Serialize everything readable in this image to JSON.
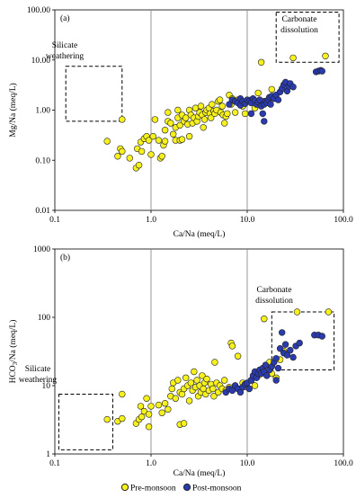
{
  "colors": {
    "pre": "#f6f11c",
    "post": "#2a3bb0",
    "outline": "#222222",
    "refline": "#8c8c8c"
  },
  "legend": {
    "pre": "Pre-monsoon",
    "post": "Post-monsoon"
  },
  "chart_data": [
    {
      "type": "scatter",
      "panel": "(a)",
      "xlabel": "Ca/Na (meq/L)",
      "ylabel": "Mg/Na (meq/L)",
      "xscale": "log",
      "yscale": "log",
      "xlim": [
        0.1,
        100
      ],
      "ylim": [
        0.01,
        100
      ],
      "xticks": [
        "0.1",
        "1.0",
        "10.0",
        "100.0"
      ],
      "yticks": [
        "0.01",
        "0.10",
        "1.00",
        "10.00",
        "100.00"
      ],
      "reference_lines_x": [
        1,
        10
      ],
      "annotations": [
        {
          "text": [
            "Silicate",
            "weathering"
          ],
          "box": {
            "x": [
              0.13,
              0.5
            ],
            "y": [
              0.6,
              7.5
            ]
          }
        },
        {
          "text": [
            "Carbonate",
            "dissolution"
          ],
          "box": {
            "x": [
              20,
              90
            ],
            "y": [
              9,
              90
            ]
          }
        }
      ],
      "series": [
        {
          "name": "Pre-monsoon",
          "points": [
            [
              0.35,
              0.24
            ],
            [
              0.45,
              0.12
            ],
            [
              0.48,
              0.17
            ],
            [
              0.5,
              0.15
            ],
            [
              0.5,
              0.65
            ],
            [
              0.6,
              0.11
            ],
            [
              0.7,
              0.07
            ],
            [
              0.72,
              0.17
            ],
            [
              0.75,
              0.08
            ],
            [
              0.78,
              0.23
            ],
            [
              0.8,
              0.15
            ],
            [
              0.85,
              0.27
            ],
            [
              0.9,
              0.3
            ],
            [
              0.95,
              0.25
            ],
            [
              1.0,
              0.13
            ],
            [
              1.05,
              0.3
            ],
            [
              1.1,
              0.65
            ],
            [
              1.2,
              0.25
            ],
            [
              1.25,
              0.11
            ],
            [
              1.3,
              0.12
            ],
            [
              1.35,
              0.2
            ],
            [
              1.4,
              0.24
            ],
            [
              1.4,
              0.4
            ],
            [
              1.5,
              0.6
            ],
            [
              1.5,
              0.9
            ],
            [
              1.6,
              0.55
            ],
            [
              1.7,
              0.33
            ],
            [
              1.8,
              0.25
            ],
            [
              1.8,
              0.45
            ],
            [
              1.9,
              0.7
            ],
            [
              1.9,
              1.0
            ],
            [
              2.0,
              0.25
            ],
            [
              2.0,
              0.5
            ],
            [
              2.1,
              0.26
            ],
            [
              2.1,
              0.8
            ],
            [
              2.2,
              0.6
            ],
            [
              2.3,
              0.7
            ],
            [
              2.4,
              0.52
            ],
            [
              2.5,
              1.0
            ],
            [
              2.5,
              0.3
            ],
            [
              2.6,
              0.8
            ],
            [
              2.7,
              0.55
            ],
            [
              2.8,
              0.7
            ],
            [
              2.9,
              1.1
            ],
            [
              3.0,
              0.6
            ],
            [
              3.1,
              0.75
            ],
            [
              3.2,
              0.9
            ],
            [
              3.3,
              1.2
            ],
            [
              3.4,
              0.8
            ],
            [
              3.5,
              0.45
            ],
            [
              3.6,
              0.65
            ],
            [
              3.7,
              0.9
            ],
            [
              3.8,
              1.0
            ],
            [
              4.0,
              1.1
            ],
            [
              4.1,
              0.85
            ],
            [
              4.2,
              0.7
            ],
            [
              4.3,
              1.3
            ],
            [
              4.5,
              0.95
            ],
            [
              4.6,
              0.85
            ],
            [
              4.8,
              1.0
            ],
            [
              5.0,
              1.5
            ],
            [
              5.2,
              1.6
            ],
            [
              5.3,
              0.9
            ],
            [
              5.5,
              1.2
            ],
            [
              5.6,
              0.8
            ],
            [
              5.8,
              0.55
            ],
            [
              6.0,
              0.75
            ],
            [
              6.2,
              0.85
            ],
            [
              6.5,
              2.0
            ],
            [
              6.8,
              1.3
            ],
            [
              7.0,
              1.7
            ],
            [
              7.5,
              0.9
            ],
            [
              8.0,
              1.6
            ],
            [
              8.5,
              1.3
            ],
            [
              9.0,
              1.2
            ],
            [
              9.5,
              0.85
            ],
            [
              10.0,
              1.5
            ],
            [
              11.0,
              1.6
            ],
            [
              12.0,
              1.1
            ],
            [
              13.0,
              2.2
            ],
            [
              14.0,
              9.0
            ],
            [
              15.0,
              1.5
            ],
            [
              18.0,
              2.6
            ],
            [
              30.0,
              11.0
            ],
            [
              65.0,
              12.0
            ]
          ]
        },
        {
          "name": "Post-monsoon",
          "points": [
            [
              6.5,
              1.3
            ],
            [
              7.0,
              1.6
            ],
            [
              7.5,
              1.5
            ],
            [
              8.0,
              1.4
            ],
            [
              8.5,
              1.25
            ],
            [
              8.5,
              1.7
            ],
            [
              9.0,
              1.5
            ],
            [
              9.5,
              1.35
            ],
            [
              10.0,
              1.6
            ],
            [
              10.5,
              1.5
            ],
            [
              11.0,
              1.4
            ],
            [
              11.0,
              0.85
            ],
            [
              11.5,
              1.7
            ],
            [
              12.0,
              1.55
            ],
            [
              12.5,
              1.3
            ],
            [
              13.0,
              1.45
            ],
            [
              13.5,
              1.6
            ],
            [
              14.0,
              1.2
            ],
            [
              14.5,
              0.85
            ],
            [
              15.0,
              1.3
            ],
            [
              15.0,
              0.6
            ],
            [
              15.5,
              1.5
            ],
            [
              16.0,
              1.4
            ],
            [
              16.5,
              1.6
            ],
            [
              17.0,
              1.8
            ],
            [
              17.5,
              1.3
            ],
            [
              18.0,
              1.9
            ],
            [
              19.0,
              1.7
            ],
            [
              20.0,
              2.0
            ],
            [
              21.0,
              1.6
            ],
            [
              22.0,
              2.3
            ],
            [
              23.0,
              2.7
            ],
            [
              24.0,
              3.2
            ],
            [
              25.0,
              3.6
            ],
            [
              26.0,
              2.4
            ],
            [
              27.0,
              3.0
            ],
            [
              28.0,
              3.4
            ],
            [
              30.0,
              2.9
            ],
            [
              52.0,
              5.8
            ],
            [
              55.0,
              6.0
            ],
            [
              58.0,
              6.2
            ],
            [
              60.0,
              6.0
            ]
          ]
        }
      ]
    },
    {
      "type": "scatter",
      "panel": "(b)",
      "xlabel": "Ca/Na (meq/L)",
      "ylabel": "HCO3/Na (meq/L)",
      "xscale": "log",
      "yscale": "log",
      "xlim": [
        0.1,
        100
      ],
      "ylim": [
        1,
        1000
      ],
      "xticks": [
        "0.1",
        "1.0",
        "10.0",
        "100.0"
      ],
      "yticks": [
        "1",
        "10",
        "100",
        "1000"
      ],
      "reference_lines_x": [
        1,
        10
      ],
      "annotations": [
        {
          "text": [
            "Silicate",
            "weathering"
          ],
          "box": {
            "x": [
              0.11,
              0.4
            ],
            "y": [
              1.15,
              7.5
            ]
          }
        },
        {
          "text": [
            "Carbonate",
            "dissolution"
          ],
          "box": {
            "x": [
              18,
              80
            ],
            "y": [
              17,
              120
            ]
          }
        }
      ],
      "series": [
        {
          "name": "Pre-monsoon",
          "points": [
            [
              0.35,
              3.2
            ],
            [
              0.45,
              3.0
            ],
            [
              0.5,
              7.5
            ],
            [
              0.5,
              3.3
            ],
            [
              0.7,
              2.8
            ],
            [
              0.75,
              3.2
            ],
            [
              0.78,
              5.0
            ],
            [
              0.8,
              3.5
            ],
            [
              0.85,
              4.2
            ],
            [
              0.9,
              6.5
            ],
            [
              0.95,
              2.5
            ],
            [
              0.95,
              3.8
            ],
            [
              1.0,
              5.0
            ],
            [
              1.2,
              5.2
            ],
            [
              1.3,
              4.0
            ],
            [
              1.4,
              5.5
            ],
            [
              1.5,
              4.5
            ],
            [
              1.6,
              7.0
            ],
            [
              1.65,
              9.0
            ],
            [
              1.7,
              11.0
            ],
            [
              1.8,
              6.5
            ],
            [
              1.9,
              12.0
            ],
            [
              2.0,
              8.0
            ],
            [
              2.0,
              2.7
            ],
            [
              2.1,
              7.5
            ],
            [
              2.2,
              9.0
            ],
            [
              2.2,
              2.8
            ],
            [
              2.3,
              13.0
            ],
            [
              2.4,
              10.0
            ],
            [
              2.5,
              6.0
            ],
            [
              2.6,
              11.0
            ],
            [
              2.7,
              8.5
            ],
            [
              2.8,
              16.0
            ],
            [
              2.9,
              9.5
            ],
            [
              3.0,
              12.0
            ],
            [
              3.1,
              7.0
            ],
            [
              3.2,
              10.0
            ],
            [
              3.3,
              8.0
            ],
            [
              3.4,
              14.0
            ],
            [
              3.5,
              9.0
            ],
            [
              3.6,
              11.0
            ],
            [
              3.7,
              7.5
            ],
            [
              3.8,
              12.5
            ],
            [
              4.0,
              8.5
            ],
            [
              4.2,
              10.5
            ],
            [
              4.4,
              9.0
            ],
            [
              4.5,
              7.0
            ],
            [
              4.6,
              22.0
            ],
            [
              4.8,
              11.0
            ],
            [
              5.0,
              8.0
            ],
            [
              5.2,
              10.0
            ],
            [
              5.5,
              9.0
            ],
            [
              5.8,
              12.0
            ],
            [
              6.0,
              8.5
            ],
            [
              6.5,
              9.5
            ],
            [
              6.8,
              42.0
            ],
            [
              7.0,
              38.0
            ],
            [
              7.5,
              10.0
            ],
            [
              8.0,
              27.0
            ],
            [
              8.5,
              9.0
            ],
            [
              9.0,
              11.0
            ],
            [
              10.0,
              9.5
            ],
            [
              11.0,
              12.0
            ],
            [
              12.0,
              10.0
            ],
            [
              13.0,
              14.0
            ],
            [
              15.0,
              95.0
            ],
            [
              17.0,
              22.0
            ],
            [
              18.0,
              15.0
            ],
            [
              20.0,
              13.0
            ],
            [
              22.0,
              24.0
            ],
            [
              24.0,
              32.0
            ],
            [
              33.0,
              120.0
            ],
            [
              70.0,
              120.0
            ]
          ]
        },
        {
          "name": "Post-monsoon",
          "points": [
            [
              6.0,
              8.0
            ],
            [
              6.5,
              9.0
            ],
            [
              7.0,
              8.5
            ],
            [
              7.5,
              10.0
            ],
            [
              8.0,
              9.0
            ],
            [
              8.5,
              8.0
            ],
            [
              9.0,
              9.5
            ],
            [
              9.5,
              10.5
            ],
            [
              10.0,
              11.0
            ],
            [
              10.5,
              9.0
            ],
            [
              11.0,
              12.0
            ],
            [
              11.5,
              14.0
            ],
            [
              12.0,
              16.0
            ],
            [
              12.5,
              13.0
            ],
            [
              13.0,
              15.0
            ],
            [
              13.5,
              17.0
            ],
            [
              14.0,
              15.0
            ],
            [
              14.5,
              18.0
            ],
            [
              15.0,
              16.0
            ],
            [
              15.5,
              20.0
            ],
            [
              16.0,
              14.0
            ],
            [
              17.0,
              17.0
            ],
            [
              18.0,
              19.0
            ],
            [
              19.0,
              22.0
            ],
            [
              20.0,
              25.0
            ],
            [
              20.0,
              12.0
            ],
            [
              21.0,
              18.0
            ],
            [
              22.0,
              35.0
            ],
            [
              23.0,
              60.0
            ],
            [
              24.0,
              30.0
            ],
            [
              25.0,
              40.0
            ],
            [
              26.0,
              28.0
            ],
            [
              28.0,
              33.0
            ],
            [
              30.0,
              26.0
            ],
            [
              32.0,
              38.0
            ],
            [
              35.0,
              42.0
            ],
            [
              50.0,
              55.0
            ],
            [
              55.0,
              55.0
            ],
            [
              60.0,
              53.0
            ]
          ]
        }
      ]
    }
  ]
}
